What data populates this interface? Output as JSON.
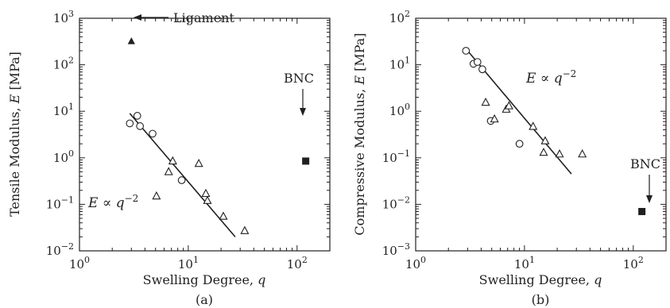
{
  "figure": {
    "xlabel_text": "Swelling Degree, ",
    "xlabel_var": "q"
  },
  "chart_data": [
    {
      "type": "scatter",
      "panel_label": "(a)",
      "ylabel_text": "Tensile Modulus, ",
      "ylabel_var": "E",
      "ylabel_unit": " [MPa]",
      "xlabel": "Swelling Degree, q",
      "x_scale": "log",
      "y_scale": "log",
      "xlim": [
        1,
        200
      ],
      "ylim": [
        0.01,
        1000
      ],
      "x_ticks": [
        {
          "value": 1,
          "base": "10",
          "exp": "0"
        },
        {
          "value": 10,
          "base": "10",
          "exp": "1"
        },
        {
          "value": 100,
          "base": "10",
          "exp": "2"
        }
      ],
      "y_ticks": [
        {
          "value": 0.01,
          "base": "10",
          "exp": "−2"
        },
        {
          "value": 0.1,
          "base": "10",
          "exp": "−1"
        },
        {
          "value": 1,
          "base": "10",
          "exp": "0"
        },
        {
          "value": 10,
          "base": "10",
          "exp": "1"
        },
        {
          "value": 100,
          "base": "10",
          "exp": "2"
        },
        {
          "value": 1000,
          "base": "10",
          "exp": "3"
        }
      ],
      "series": [
        {
          "marker": "circle",
          "points": [
            [
              2.9,
              5.5
            ],
            [
              3.4,
              8.0
            ],
            [
              3.6,
              4.8
            ],
            [
              4.7,
              3.3
            ],
            [
              8.7,
              0.33
            ]
          ]
        },
        {
          "marker": "triangle",
          "points": [
            [
              5.1,
              0.15
            ],
            [
              6.6,
              0.5
            ],
            [
              7.2,
              0.85
            ],
            [
              12.5,
              0.75
            ],
            [
              14.5,
              0.17
            ],
            [
              15.0,
              0.12
            ],
            [
              21.0,
              0.055
            ],
            [
              33.0,
              0.027
            ]
          ]
        },
        {
          "marker": "filled-triangle",
          "label": "Ligament",
          "points": [
            [
              3.0,
              320
            ]
          ]
        },
        {
          "marker": "filled-square",
          "label": "BNC",
          "points": [
            [
              120,
              0.85
            ]
          ]
        }
      ],
      "fit_line": {
        "from": [
          2.9,
          9.0
        ],
        "to": [
          27.0,
          0.02
        ]
      },
      "formula": {
        "lhs": "E",
        "rel": " ∝ ",
        "var": "q",
        "exp": "−2"
      },
      "annotations": {
        "ligament": "Ligament",
        "bnc": "BNC"
      }
    },
    {
      "type": "scatter",
      "panel_label": "(b)",
      "ylabel_text": "Compressive Modulus, ",
      "ylabel_var": "E",
      "ylabel_unit": " [MPa]",
      "xlabel": "Swelling Degree, q",
      "x_scale": "log",
      "y_scale": "log",
      "xlim": [
        1,
        200
      ],
      "ylim": [
        0.001,
        100
      ],
      "x_ticks": [
        {
          "value": 1,
          "base": "10",
          "exp": "0"
        },
        {
          "value": 10,
          "base": "10",
          "exp": "1"
        },
        {
          "value": 100,
          "base": "10",
          "exp": "2"
        }
      ],
      "y_ticks": [
        {
          "value": 0.001,
          "base": "10",
          "exp": "−3"
        },
        {
          "value": 0.01,
          "base": "10",
          "exp": "−2"
        },
        {
          "value": 0.1,
          "base": "10",
          "exp": "−1"
        },
        {
          "value": 1,
          "base": "10",
          "exp": "0"
        },
        {
          "value": 10,
          "base": "10",
          "exp": "1"
        },
        {
          "value": 100,
          "base": "10",
          "exp": "2"
        }
      ],
      "series": [
        {
          "marker": "circle",
          "points": [
            [
              2.9,
              20
            ],
            [
              3.4,
              10.5
            ],
            [
              3.7,
              11.5
            ],
            [
              4.1,
              8.0
            ],
            [
              4.9,
              0.62
            ],
            [
              9.0,
              0.2
            ]
          ]
        },
        {
          "marker": "triangle",
          "points": [
            [
              4.4,
              1.55
            ],
            [
              5.3,
              0.68
            ],
            [
              6.8,
              1.1
            ],
            [
              7.2,
              1.3
            ],
            [
              12.0,
              0.47
            ],
            [
              15.0,
              0.13
            ],
            [
              15.5,
              0.23
            ],
            [
              21.0,
              0.12
            ],
            [
              34.0,
              0.12
            ]
          ]
        },
        {
          "marker": "filled-square",
          "label": "BNC",
          "points": [
            [
              120,
              0.007
            ]
          ]
        }
      ],
      "fit_line": {
        "from": [
          2.9,
          22.0
        ],
        "to": [
          27.0,
          0.045
        ]
      },
      "formula": {
        "lhs": "E",
        "rel": " ∝ ",
        "var": "q",
        "exp": "−2"
      },
      "annotations": {
        "bnc": "BNC"
      }
    }
  ]
}
